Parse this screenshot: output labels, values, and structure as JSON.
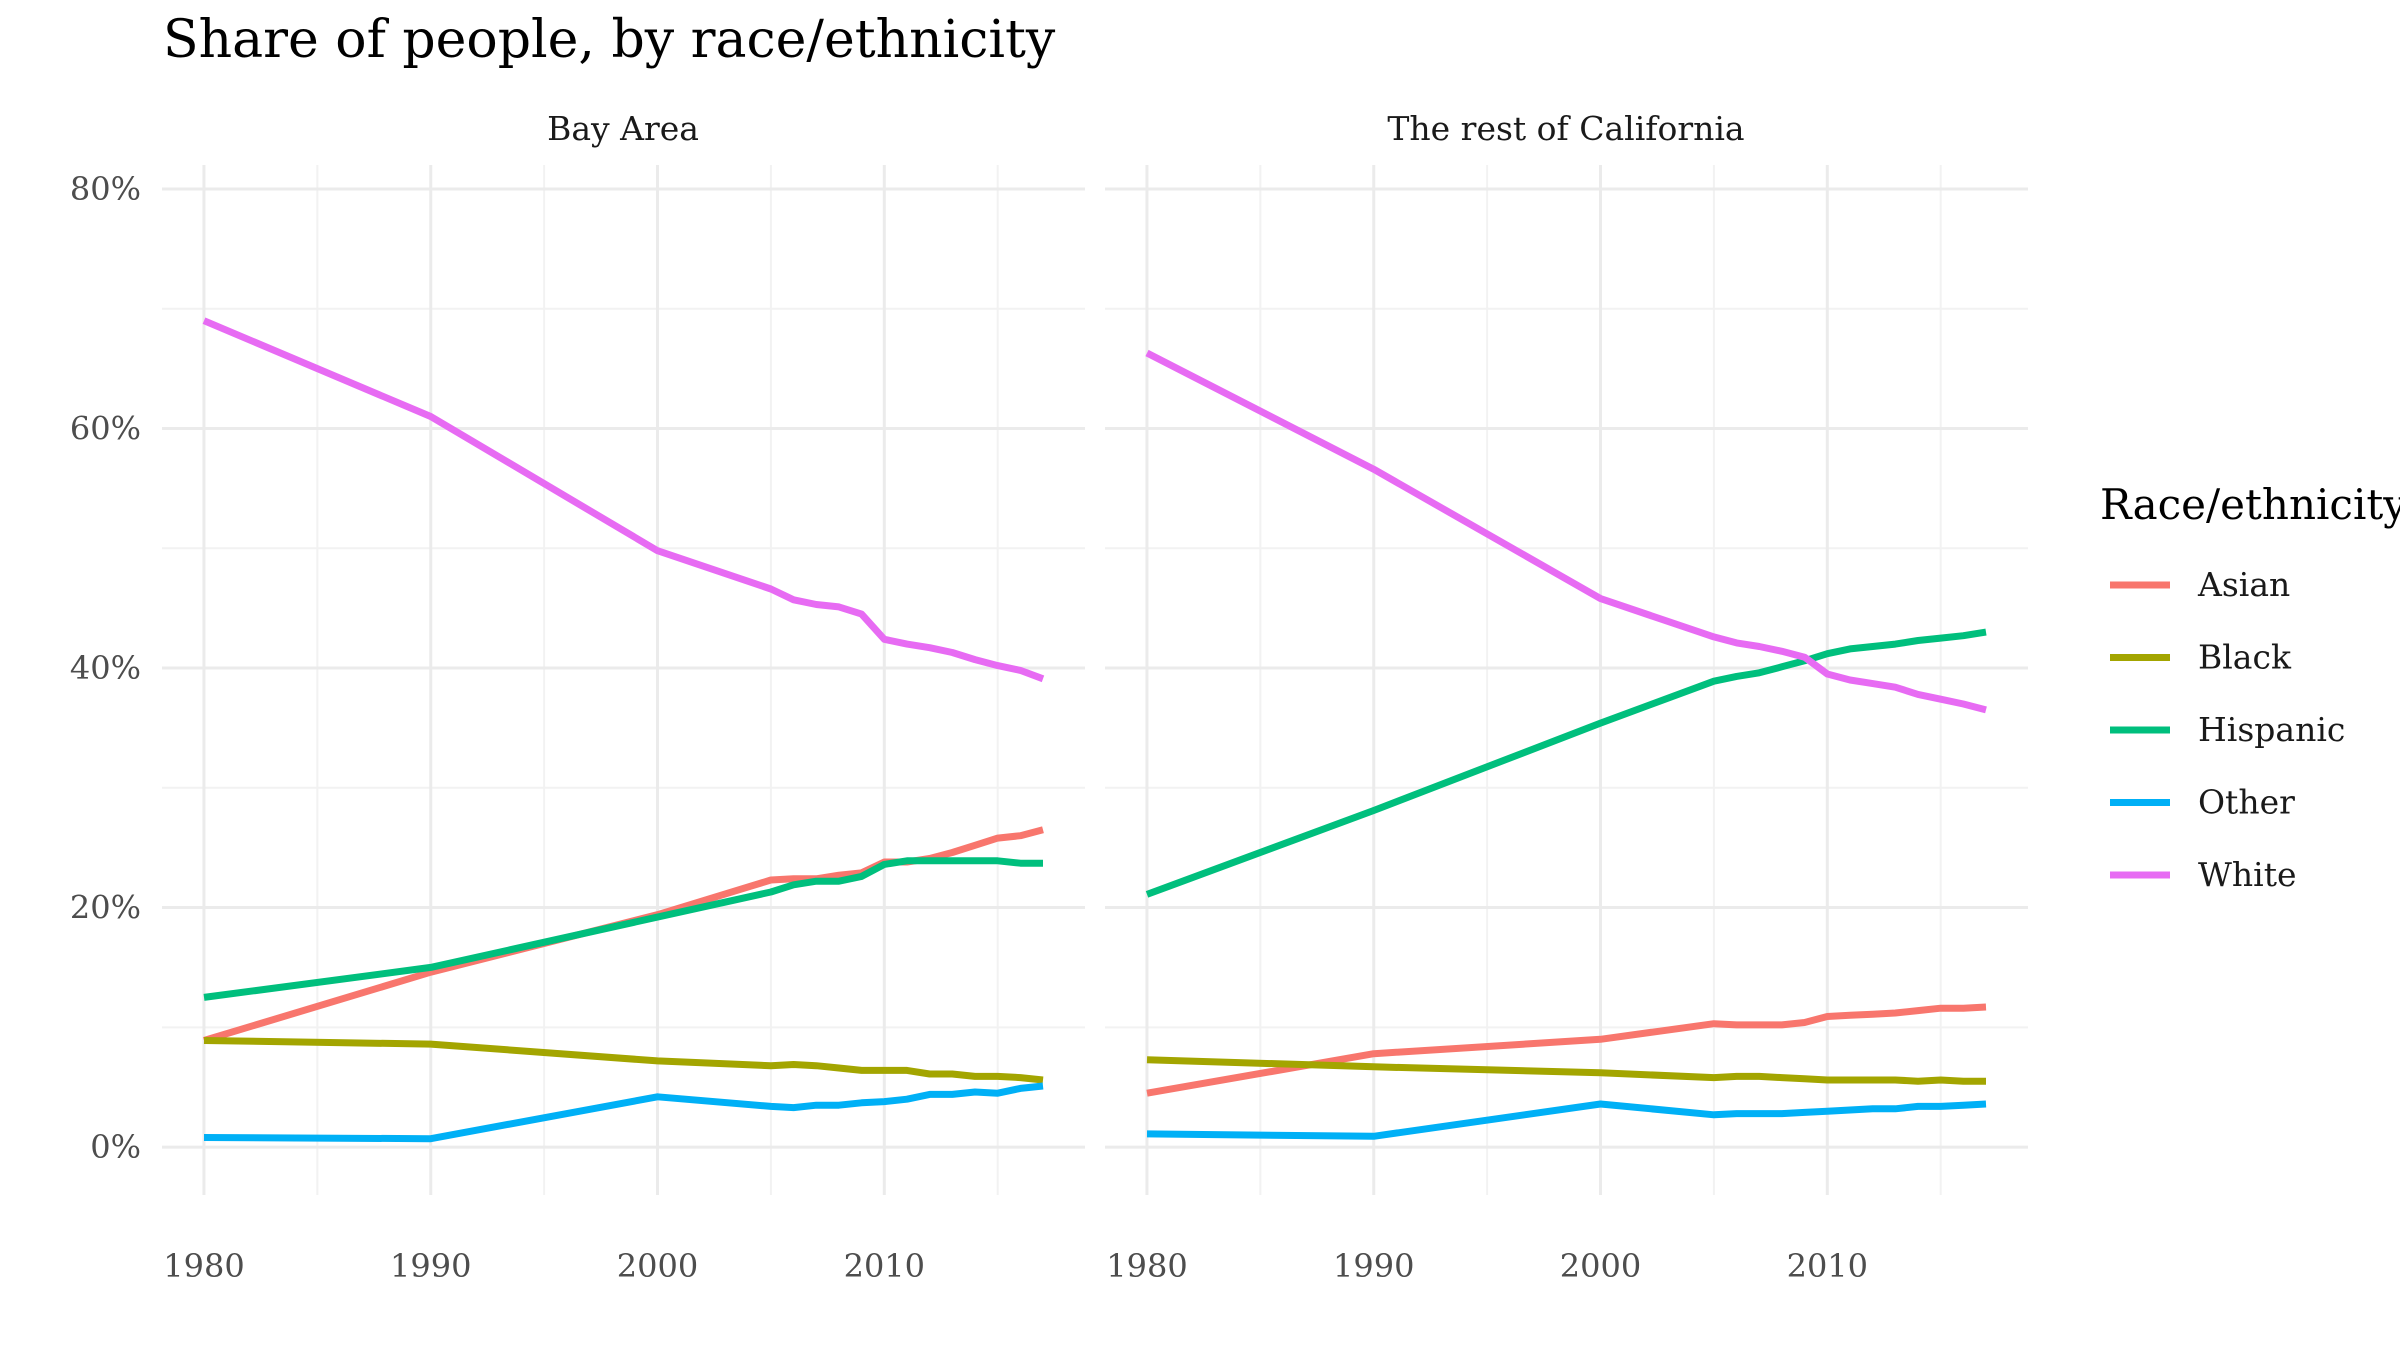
{
  "chart_data": {
    "type": "line",
    "title": "Share of people, by race/ethnicity",
    "legend_title": "Race/ethnicity",
    "legend_position": "right",
    "grid": true,
    "ylim": [
      0,
      80
    ],
    "xlim": [
      1980,
      2017
    ],
    "y_ticks": [
      0,
      20,
      40,
      60,
      80
    ],
    "y_tick_labels": [
      "0%",
      "20%",
      "40%",
      "60%",
      "80%"
    ],
    "x_ticks": [
      1980,
      1990,
      2000,
      2010
    ],
    "x_tick_labels": [
      "1980",
      "1990",
      "2000",
      "2010"
    ],
    "x": [
      1980,
      1990,
      2000,
      2005,
      2006,
      2007,
      2008,
      2009,
      2010,
      2011,
      2012,
      2013,
      2014,
      2015,
      2016,
      2017
    ],
    "colors": {
      "Asian": "#F8766D",
      "Black": "#A3A500",
      "Hispanic": "#00BF7D",
      "Other": "#00B0F6",
      "White": "#E76BF3"
    },
    "legend": [
      "Asian",
      "Black",
      "Hispanic",
      "Other",
      "White"
    ],
    "panels": [
      {
        "name": "Bay Area",
        "series": [
          {
            "name": "Asian",
            "values": [
              8.9,
              14.6,
              19.4,
              22.3,
              22.4,
              22.4,
              22.7,
              22.9,
              23.8,
              23.8,
              24.1,
              24.6,
              25.2,
              25.8,
              26.0,
              26.5
            ]
          },
          {
            "name": "Black",
            "values": [
              8.9,
              8.6,
              7.2,
              6.8,
              6.9,
              6.8,
              6.6,
              6.4,
              6.4,
              6.4,
              6.1,
              6.1,
              5.9,
              5.9,
              5.8,
              5.6
            ]
          },
          {
            "name": "Hispanic",
            "values": [
              12.5,
              15.0,
              19.2,
              21.3,
              21.9,
              22.2,
              22.2,
              22.6,
              23.6,
              23.9,
              23.9,
              23.9,
              23.9,
              23.9,
              23.7,
              23.7
            ]
          },
          {
            "name": "Other",
            "values": [
              0.8,
              0.7,
              4.2,
              3.4,
              3.3,
              3.5,
              3.5,
              3.7,
              3.8,
              4.0,
              4.4,
              4.4,
              4.6,
              4.5,
              4.9,
              5.1
            ]
          },
          {
            "name": "White",
            "values": [
              69.0,
              61.0,
              49.8,
              46.6,
              45.7,
              45.3,
              45.1,
              44.5,
              42.4,
              42.0,
              41.7,
              41.3,
              40.7,
              40.2,
              39.8,
              39.1
            ]
          }
        ]
      },
      {
        "name": "The rest of California",
        "series": [
          {
            "name": "Asian",
            "values": [
              4.5,
              7.8,
              9.0,
              10.3,
              10.2,
              10.2,
              10.2,
              10.4,
              10.9,
              11.0,
              11.1,
              11.2,
              11.4,
              11.6,
              11.6,
              11.7
            ]
          },
          {
            "name": "Black",
            "values": [
              7.3,
              6.7,
              6.2,
              5.8,
              5.9,
              5.9,
              5.8,
              5.7,
              5.6,
              5.6,
              5.6,
              5.6,
              5.5,
              5.6,
              5.5,
              5.5
            ]
          },
          {
            "name": "Hispanic",
            "values": [
              21.1,
              28.1,
              35.4,
              38.9,
              39.3,
              39.6,
              40.1,
              40.6,
              41.2,
              41.6,
              41.8,
              42.0,
              42.3,
              42.5,
              42.7,
              43.0
            ]
          },
          {
            "name": "Other",
            "values": [
              1.1,
              0.9,
              3.6,
              2.7,
              2.8,
              2.8,
              2.8,
              2.9,
              3.0,
              3.1,
              3.2,
              3.2,
              3.4,
              3.4,
              3.5,
              3.6
            ]
          },
          {
            "name": "White",
            "values": [
              66.3,
              56.6,
              45.8,
              42.6,
              42.1,
              41.8,
              41.4,
              40.9,
              39.5,
              39.0,
              38.7,
              38.4,
              37.8,
              37.4,
              37.0,
              36.5
            ]
          }
        ]
      }
    ]
  }
}
